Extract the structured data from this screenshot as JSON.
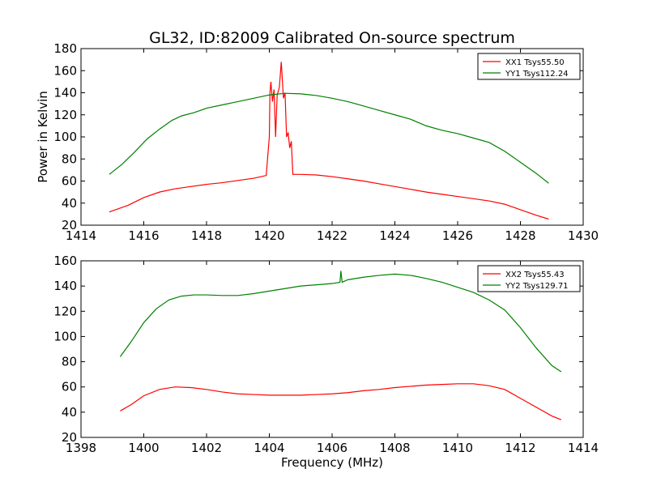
{
  "figure": {
    "title": "GL32, ID:82009 Calibrated On-source spectrum",
    "ylabel": "Power in Kelvin",
    "xlabel": "Frequency (MHz)"
  },
  "chart_data": [
    {
      "type": "line",
      "title": "GL32, ID:82009 Calibrated On-source spectrum",
      "xlabel": "",
      "ylabel": "Power in Kelvin",
      "xlim": [
        1414,
        1430
      ],
      "ylim": [
        20,
        180
      ],
      "xticks": [
        1414,
        1416,
        1418,
        1420,
        1422,
        1424,
        1426,
        1428,
        1430
      ],
      "yticks": [
        20,
        40,
        60,
        80,
        100,
        120,
        140,
        160,
        180
      ],
      "legend_position": "top-right",
      "grid": false,
      "series": [
        {
          "name": "XX1 Tsys55.50",
          "color": "#ff0000",
          "points": [
            [
              1414.9,
              32
            ],
            [
              1415.5,
              38
            ],
            [
              1416,
              45
            ],
            [
              1416.5,
              50
            ],
            [
              1417,
              53
            ],
            [
              1417.5,
              55
            ],
            [
              1418,
              57
            ],
            [
              1418.5,
              58.5
            ],
            [
              1419,
              60.5
            ],
            [
              1419.5,
              62.5
            ],
            [
              1419.9,
              65
            ],
            [
              1420.0,
              100
            ],
            [
              1420.02,
              140
            ],
            [
              1420.05,
              150
            ],
            [
              1420.1,
              132
            ],
            [
              1420.15,
              143
            ],
            [
              1420.2,
              100
            ],
            [
              1420.25,
              138
            ],
            [
              1420.32,
              145
            ],
            [
              1420.38,
              168
            ],
            [
              1420.45,
              135
            ],
            [
              1420.5,
              140
            ],
            [
              1420.55,
              100
            ],
            [
              1420.6,
              104
            ],
            [
              1420.65,
              90
            ],
            [
              1420.7,
              96
            ],
            [
              1420.75,
              66
            ],
            [
              1421,
              66
            ],
            [
              1421.5,
              65.5
            ],
            [
              1422,
              64
            ],
            [
              1422.5,
              62
            ],
            [
              1423,
              60
            ],
            [
              1423.5,
              57.5
            ],
            [
              1424,
              55
            ],
            [
              1424.5,
              52.5
            ],
            [
              1425,
              50
            ],
            [
              1425.5,
              48
            ],
            [
              1426,
              46
            ],
            [
              1426.5,
              44
            ],
            [
              1427,
              42
            ],
            [
              1427.5,
              39
            ],
            [
              1428,
              34
            ],
            [
              1428.5,
              29
            ],
            [
              1428.9,
              25.5
            ]
          ]
        },
        {
          "name": "YY1 Tsys112.24",
          "color": "#008000",
          "points": [
            [
              1414.9,
              66
            ],
            [
              1415.3,
              75
            ],
            [
              1415.7,
              86
            ],
            [
              1416.1,
              98
            ],
            [
              1416.5,
              107
            ],
            [
              1416.9,
              115
            ],
            [
              1417.2,
              119
            ],
            [
              1417.6,
              122
            ],
            [
              1418,
              126
            ],
            [
              1418.5,
              129
            ],
            [
              1419,
              132
            ],
            [
              1419.5,
              135
            ],
            [
              1420,
              138
            ],
            [
              1420.5,
              139.5
            ],
            [
              1421,
              139
            ],
            [
              1421.5,
              137.5
            ],
            [
              1422,
              135
            ],
            [
              1422.5,
              132
            ],
            [
              1423,
              128
            ],
            [
              1423.5,
              124
            ],
            [
              1424,
              120
            ],
            [
              1424.5,
              116
            ],
            [
              1425,
              110
            ],
            [
              1425.5,
              106
            ],
            [
              1426,
              103
            ],
            [
              1426.5,
              99
            ],
            [
              1427,
              95
            ],
            [
              1427.5,
              87
            ],
            [
              1428,
              77
            ],
            [
              1428.5,
              67
            ],
            [
              1428.9,
              58
            ]
          ]
        }
      ]
    },
    {
      "type": "line",
      "title": "",
      "xlabel": "Frequency (MHz)",
      "ylabel": "",
      "xlim": [
        1398,
        1414
      ],
      "ylim": [
        20,
        160
      ],
      "xticks": [
        1398,
        1400,
        1402,
        1404,
        1406,
        1408,
        1410,
        1412,
        1414
      ],
      "yticks": [
        20,
        40,
        60,
        80,
        100,
        120,
        140,
        160
      ],
      "legend_position": "top-right",
      "grid": false,
      "series": [
        {
          "name": "XX2 Tsys55.43",
          "color": "#ff0000",
          "points": [
            [
              1399.25,
              41
            ],
            [
              1399.6,
              46
            ],
            [
              1400,
              53
            ],
            [
              1400.5,
              58
            ],
            [
              1401,
              60
            ],
            [
              1401.5,
              59.5
            ],
            [
              1402,
              58
            ],
            [
              1402.5,
              56
            ],
            [
              1403,
              54.5
            ],
            [
              1403.5,
              54
            ],
            [
              1404,
              53.5
            ],
            [
              1404.5,
              53.5
            ],
            [
              1405,
              53.5
            ],
            [
              1405.5,
              54
            ],
            [
              1406,
              54.5
            ],
            [
              1406.5,
              55.5
            ],
            [
              1407,
              57
            ],
            [
              1407.5,
              58
            ],
            [
              1408,
              59.5
            ],
            [
              1408.5,
              60.5
            ],
            [
              1409,
              61.5
            ],
            [
              1409.5,
              62
            ],
            [
              1410,
              62.5
            ],
            [
              1410.5,
              62.5
            ],
            [
              1411,
              61
            ],
            [
              1411.5,
              58
            ],
            [
              1412,
              51
            ],
            [
              1412.5,
              44
            ],
            [
              1413,
              37
            ],
            [
              1413.3,
              34
            ]
          ]
        },
        {
          "name": "YY2 Tsys129.71",
          "color": "#008000",
          "points": [
            [
              1399.25,
              84
            ],
            [
              1399.6,
              96
            ],
            [
              1400,
              111
            ],
            [
              1400.4,
              122
            ],
            [
              1400.8,
              129
            ],
            [
              1401.2,
              132
            ],
            [
              1401.6,
              133
            ],
            [
              1402,
              133
            ],
            [
              1402.5,
              132.5
            ],
            [
              1403,
              132.5
            ],
            [
              1403.5,
              134
            ],
            [
              1404,
              136
            ],
            [
              1404.5,
              138
            ],
            [
              1405,
              140
            ],
            [
              1405.5,
              141
            ],
            [
              1406,
              142
            ],
            [
              1406.25,
              143
            ],
            [
              1406.28,
              152
            ],
            [
              1406.32,
              143
            ],
            [
              1406.5,
              145
            ],
            [
              1407,
              147
            ],
            [
              1407.5,
              148.5
            ],
            [
              1408,
              149.5
            ],
            [
              1408.5,
              148.5
            ],
            [
              1409,
              146
            ],
            [
              1409.5,
              143
            ],
            [
              1410,
              139
            ],
            [
              1410.5,
              135
            ],
            [
              1411,
              129
            ],
            [
              1411.5,
              121
            ],
            [
              1412,
              107
            ],
            [
              1412.5,
              91
            ],
            [
              1413,
              77
            ],
            [
              1413.3,
              72
            ]
          ]
        }
      ]
    }
  ]
}
